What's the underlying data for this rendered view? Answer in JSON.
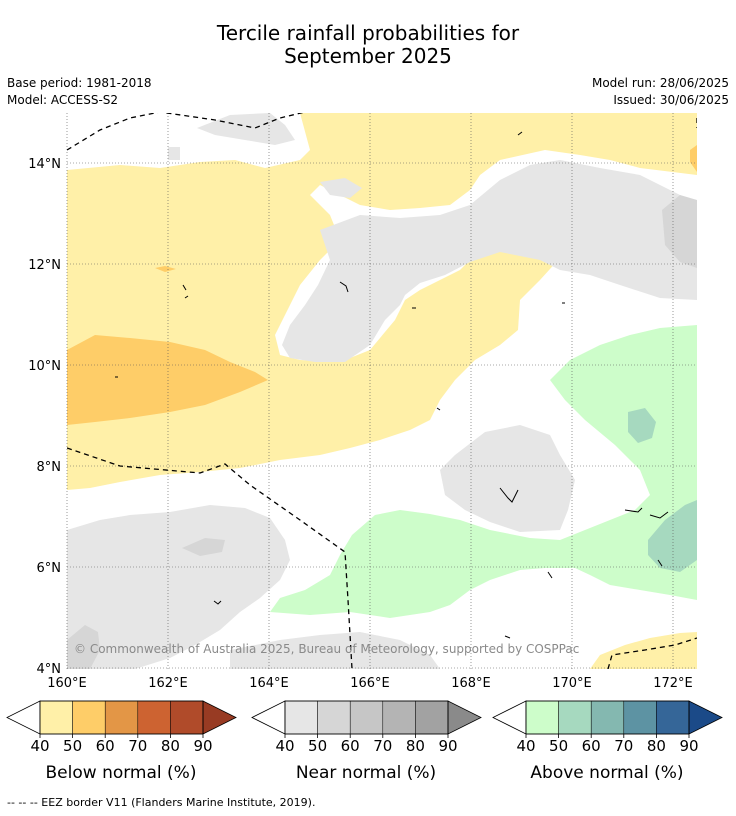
{
  "title_line1": "Tercile rainfall probabilities for",
  "title_line2": "September 2025",
  "base_period": "Base period: 1981-2018",
  "model": "Model: ACCESS-S2",
  "model_run": "Model run: 28/06/2025",
  "issued": "Issued: 30/06/2025",
  "copyright": "© Commonwealth of Australia 2025, Bureau of Meteorology, supported by COSPPac",
  "footnote": "--  --  -- EEZ border V11 (Flanders Marine Institute, 2019).",
  "lat_labels": [
    "14°N",
    "12°N",
    "10°N",
    "8°N",
    "6°N",
    "4°N"
  ],
  "lon_labels": [
    "160°E",
    "162°E",
    "164°E",
    "166°E",
    "168°E",
    "170°E",
    "172°E"
  ],
  "colorbars": [
    {
      "title": "Below normal (%)",
      "ticks": [
        "40",
        "50",
        "60",
        "70",
        "80",
        "90"
      ],
      "colors": [
        "#fff0a8",
        "#fecd68",
        "#e39646",
        "#cd6331",
        "#b04b2a",
        "#983b23"
      ]
    },
    {
      "title": "Near normal (%)",
      "ticks": [
        "40",
        "50",
        "60",
        "70",
        "80",
        "90"
      ],
      "colors": [
        "#e6e6e6",
        "#d6d6d6",
        "#c6c6c6",
        "#b4b4b4",
        "#a2a2a2",
        "#8a8a8a"
      ]
    },
    {
      "title": "Above normal (%)",
      "ticks": [
        "40",
        "50",
        "60",
        "70",
        "80",
        "90"
      ],
      "colors": [
        "#cdfdca",
        "#a6d9bf",
        "#84b8b0",
        "#5d93a3",
        "#356698",
        "#1b4a88"
      ]
    }
  ],
  "colors": {
    "below_40": "#fff0a8",
    "below_50": "#fecd68",
    "near_40": "#e6e6e6",
    "near_50": "#d6d6d6",
    "above_40": "#cdfdca",
    "above_50": "#a6d9bf"
  }
}
